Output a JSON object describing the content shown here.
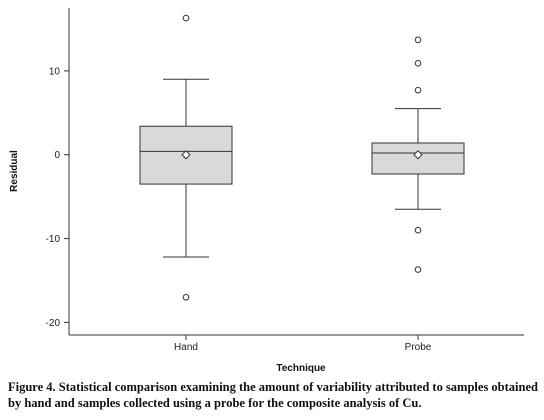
{
  "chart_data": {
    "type": "boxplot",
    "xlabel": "Technique",
    "ylabel": "Residual",
    "ylim": [
      -21.5,
      17.5
    ],
    "yticks": [
      10,
      0,
      -10,
      -20
    ],
    "categories": [
      "Hand",
      "Probe"
    ],
    "boxes": [
      {
        "name": "Hand",
        "whisker_low": -12.2,
        "q1": -3.5,
        "median": 0.4,
        "mean": 0.0,
        "q3": 3.4,
        "whisker_high": 9.0,
        "outliers": [
          16.3,
          -17.0
        ]
      },
      {
        "name": "Probe",
        "whisker_low": -6.5,
        "q1": -2.3,
        "median": 0.2,
        "mean": 0.0,
        "q3": 1.4,
        "whisker_high": 5.5,
        "outliers": [
          13.7,
          10.9,
          7.7,
          -9.0,
          -13.7
        ]
      }
    ],
    "box_fill": "#d9d9d9",
    "line_color": "#333333",
    "grid": false
  },
  "caption": "Figure 4. Statistical comparison examining the amount of variability attributed to samples obtained by hand and samples collected using a probe for the composite analysis of Cu."
}
